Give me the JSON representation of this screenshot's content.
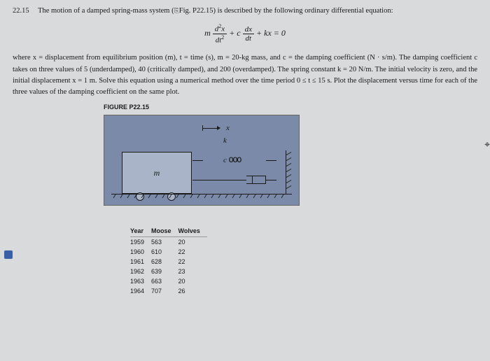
{
  "problem": {
    "number": "22.15",
    "intro": "The motion of a damped spring-mass system (",
    "figref": "Fig. P22.15",
    "intro2": ") is described by the following ordinary differential equation:"
  },
  "equation": {
    "m": "m",
    "d2x": "d",
    "d2x_sup": "2",
    "d2x_var": "x",
    "dt2": "dt",
    "dt2_sup": "2",
    "plus1": " + ",
    "c": "c",
    "dx": "dx",
    "dt": "dt",
    "plus2": " + ",
    "kx": "kx = 0"
  },
  "body": "where x = displacement from equilibrium position (m), t = time (s), m = 20-kg mass, and c = the damping coefficient (N · s/m). The damping coefficient c takes on three values of 5 (underdamped), 40 (critically damped), and 200 (overdamped). The spring constant k = 20 N/m. The initial velocity is zero, and the initial displacement x = 1 m. Solve this equation using a numerical method over the time period 0 ≤ t ≤ 15 s. Plot the displacement versus time for each of the three values of the damping coefficient on the same plot.",
  "figure": {
    "label": "FIGURE P22.15",
    "mass_label": "m",
    "x_label": "x",
    "k_label": "k",
    "c_label": "c"
  },
  "table": {
    "headers": [
      "Year",
      "Moose",
      "Wolves"
    ],
    "rows": [
      [
        "1959",
        "563",
        "20"
      ],
      [
        "1960",
        "610",
        "22"
      ],
      [
        "1961",
        "628",
        "22"
      ],
      [
        "1962",
        "639",
        "23"
      ],
      [
        "1963",
        "663",
        "20"
      ],
      [
        "1964",
        "707",
        "26"
      ]
    ]
  }
}
